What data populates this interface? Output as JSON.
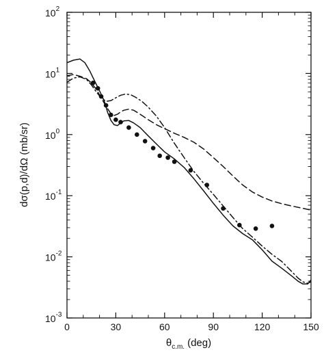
{
  "chart_data": {
    "type": "line",
    "xlabel": "θ",
    "xlabel_subscript": "c.m.",
    "xlabel_unit": "(deg)",
    "ylabel": "dσ(p,d)/dΩ (mb/sr)",
    "xlim": [
      0,
      150
    ],
    "ylim": [
      0.001,
      100
    ],
    "yscale": "log",
    "grid": false,
    "legend": "none",
    "x_ticks": [
      {
        "value": 0,
        "label": "0"
      },
      {
        "value": 30,
        "label": "30"
      },
      {
        "value": 60,
        "label": "60"
      },
      {
        "value": 90,
        "label": "90"
      },
      {
        "value": 120,
        "label": "120"
      },
      {
        "value": 150,
        "label": "150"
      }
    ],
    "y_ticks": [
      {
        "value": 0.001,
        "base": "10",
        "exp": "-3"
      },
      {
        "value": 0.01,
        "base": "10",
        "exp": "-2"
      },
      {
        "value": 0.1,
        "base": "10",
        "exp": "-1"
      },
      {
        "value": 1,
        "base": "10",
        "exp": "0"
      },
      {
        "value": 10,
        "base": "10",
        "exp": "1"
      },
      {
        "value": 100,
        "base": "10",
        "exp": "2"
      }
    ],
    "series": [
      {
        "style": "solid",
        "color": "#111111",
        "x": [
          0,
          4,
          8,
          11,
          14,
          17,
          20,
          23,
          25,
          27,
          29,
          31,
          33,
          35,
          38,
          41,
          45,
          50,
          55,
          60,
          66,
          72,
          78,
          84,
          90,
          96,
          102,
          108,
          114,
          120,
          126,
          132,
          138,
          142,
          145,
          148,
          150
        ],
        "y": [
          15,
          16.5,
          17.2,
          15,
          11,
          7.5,
          5.2,
          3.5,
          2.3,
          1.7,
          1.45,
          1.4,
          1.55,
          1.68,
          1.7,
          1.55,
          1.3,
          0.95,
          0.7,
          0.52,
          0.4,
          0.29,
          0.19,
          0.12,
          0.075,
          0.048,
          0.032,
          0.024,
          0.019,
          0.013,
          0.0085,
          0.0065,
          0.0049,
          0.004,
          0.0036,
          0.0036,
          0.0042
        ]
      },
      {
        "style": "dashed",
        "color": "#111111",
        "x": [
          0,
          4,
          8,
          12,
          15,
          18,
          21,
          24,
          27,
          29,
          31,
          33,
          35,
          38,
          41,
          45,
          50,
          55,
          60,
          66,
          72,
          78,
          84,
          90,
          96,
          102,
          108,
          114,
          120,
          126,
          132,
          138,
          144,
          150
        ],
        "y": [
          9.2,
          9.6,
          9.0,
          8.2,
          7.0,
          5.5,
          4.0,
          2.9,
          2.2,
          2.05,
          2.15,
          2.35,
          2.5,
          2.6,
          2.5,
          2.15,
          1.75,
          1.45,
          1.25,
          1.05,
          0.9,
          0.75,
          0.58,
          0.42,
          0.3,
          0.21,
          0.15,
          0.115,
          0.095,
          0.082,
          0.074,
          0.068,
          0.063,
          0.058
        ]
      },
      {
        "style": "dash-dot",
        "color": "#111111",
        "x": [
          0,
          4,
          8,
          12,
          15,
          18,
          21,
          24,
          27,
          30,
          33,
          36,
          39,
          42,
          46,
          50,
          55,
          60,
          66,
          72,
          78,
          84,
          90,
          96,
          102,
          108,
          114,
          120,
          126,
          132,
          138,
          142,
          145,
          148,
          150
        ],
        "y": [
          7.2,
          8.4,
          8.8,
          8.0,
          6.5,
          5.0,
          4.0,
          3.5,
          3.6,
          4.0,
          4.4,
          4.6,
          4.5,
          4.1,
          3.5,
          2.8,
          2.0,
          1.3,
          0.72,
          0.42,
          0.25,
          0.16,
          0.105,
          0.068,
          0.044,
          0.029,
          0.021,
          0.015,
          0.011,
          0.0084,
          0.0058,
          0.0045,
          0.0039,
          0.0037,
          0.0039
        ]
      }
    ],
    "points": {
      "marker": "filled-circle",
      "color": "#111111",
      "x": [
        16,
        19,
        21,
        24,
        27,
        30,
        33,
        38,
        43,
        48,
        53,
        57,
        62,
        66,
        76,
        86,
        96,
        106,
        116,
        126
      ],
      "y": [
        7.0,
        5.7,
        4.2,
        3.0,
        2.1,
        1.75,
        1.6,
        1.3,
        1.0,
        0.78,
        0.6,
        0.45,
        0.42,
        0.36,
        0.26,
        0.15,
        0.062,
        0.033,
        0.029,
        0.032
      ]
    }
  }
}
